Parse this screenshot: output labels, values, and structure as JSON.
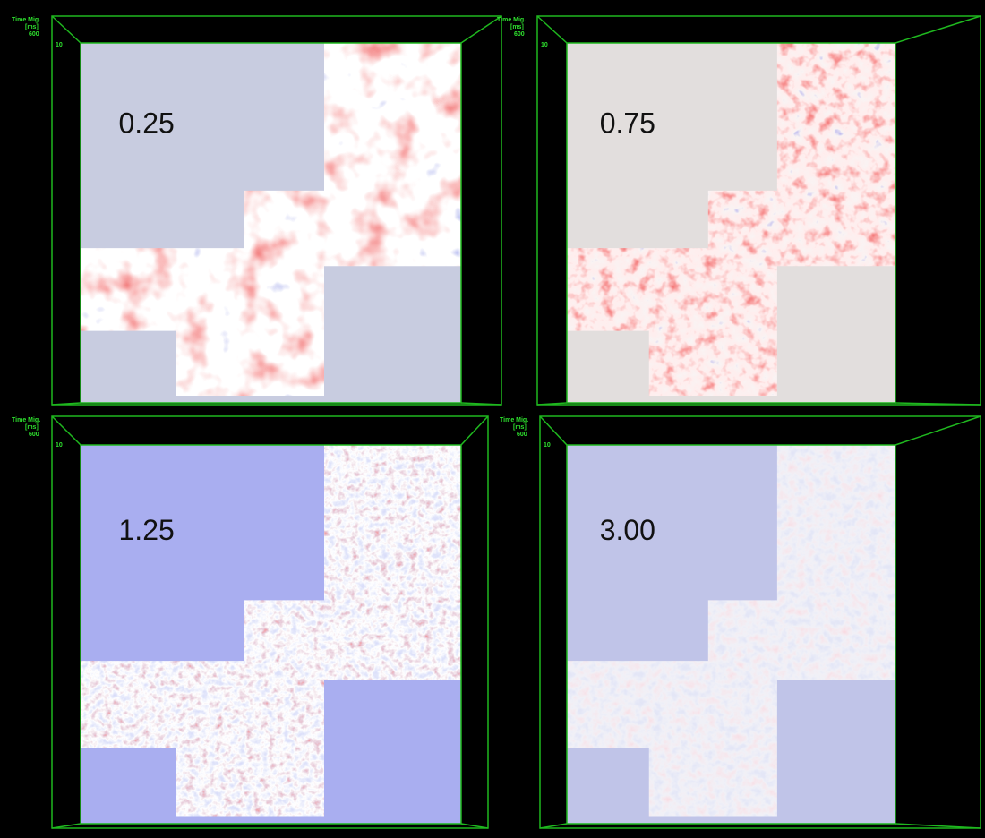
{
  "panels": [
    {
      "label": "0.25",
      "axis_texts": [
        "Time Mig.",
        "[ms]",
        "600",
        "10"
      ]
    },
    {
      "label": "0.75",
      "axis_texts": [
        "Time Mig.",
        "[ms]",
        "600",
        "10"
      ]
    },
    {
      "label": "1.25",
      "axis_texts": [
        "Time Mig.",
        "[ms]",
        "600",
        "10"
      ]
    },
    {
      "label": "3.00",
      "axis_texts": [
        "Time Mig.",
        "[ms]",
        "600",
        "10"
      ]
    }
  ]
}
